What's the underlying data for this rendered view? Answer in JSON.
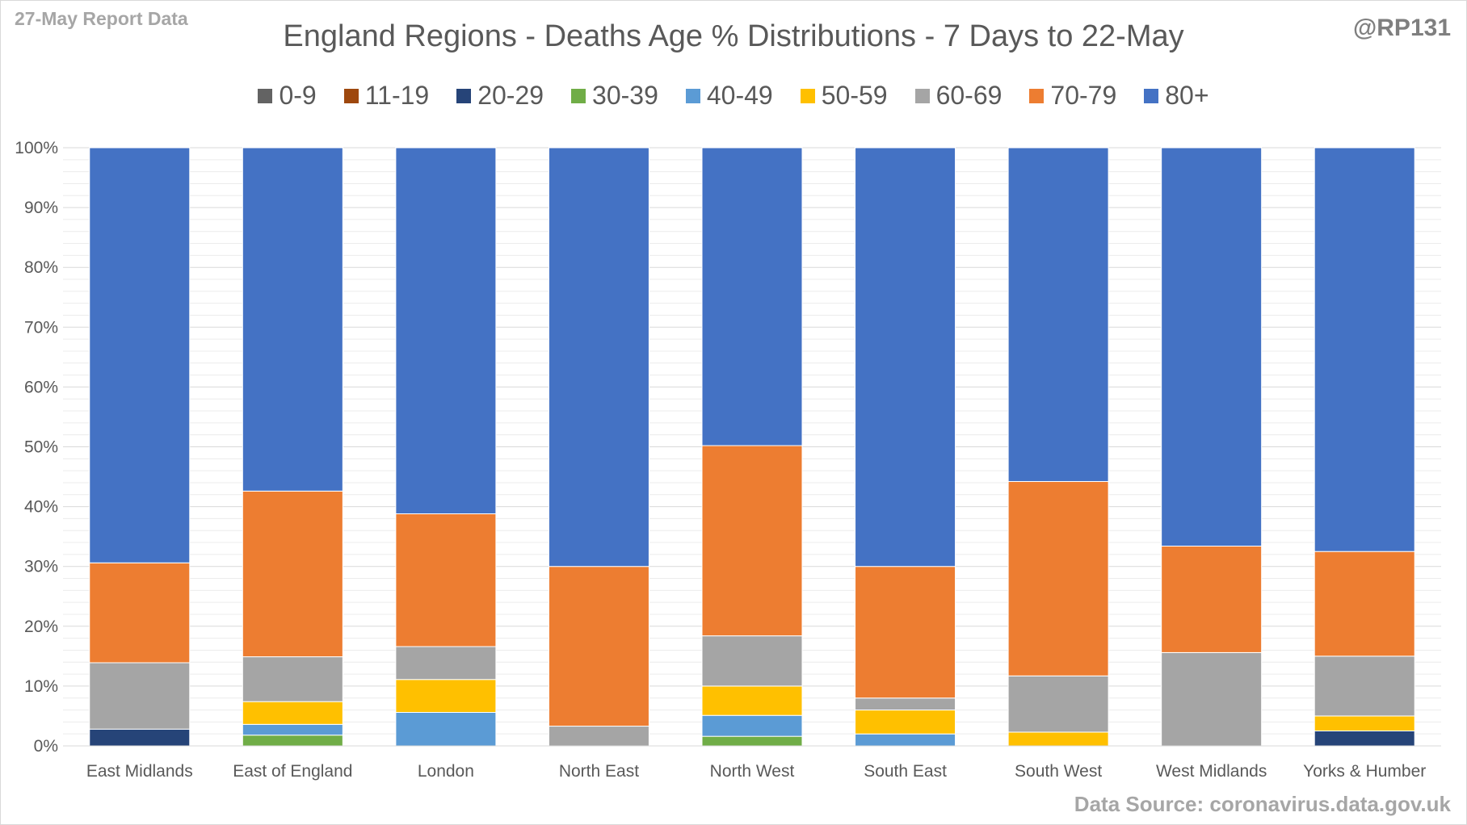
{
  "header": {
    "report_label": "27-May Report Data",
    "handle": "@RP131",
    "title": "England Regions - Deaths Age % Distributions - 7 Days to 22-May"
  },
  "footer": {
    "source": "Data Source: coronavirus.data.gov.uk"
  },
  "chart_data": {
    "type": "bar",
    "stacked": true,
    "percent": true,
    "title": "England Regions - Deaths Age % Distributions - 7 Days to 22-May",
    "xlabel": "",
    "ylabel": "",
    "ylim": [
      0,
      100
    ],
    "yticks": [
      "0%",
      "10%",
      "20%",
      "30%",
      "40%",
      "50%",
      "60%",
      "70%",
      "80%",
      "90%",
      "100%"
    ],
    "grid": true,
    "legend_position": "top",
    "categories": [
      "East Midlands",
      "East of England",
      "London",
      "North East",
      "North West",
      "South East",
      "South West",
      "West Midlands",
      "Yorks & Humber"
    ],
    "series": [
      {
        "name": "0-9",
        "color": "#636363",
        "values": [
          0,
          0,
          0,
          0,
          0,
          0,
          0,
          0,
          0
        ]
      },
      {
        "name": "11-19",
        "color": "#9e480e",
        "values": [
          0,
          0,
          0,
          0,
          0,
          0,
          0,
          0,
          0
        ]
      },
      {
        "name": "20-29",
        "color": "#264478",
        "values": [
          2.8,
          0,
          0,
          0,
          0,
          0,
          0,
          0,
          2.5
        ]
      },
      {
        "name": "30-39",
        "color": "#70ad47",
        "values": [
          0,
          1.8,
          0,
          0,
          1.6,
          0,
          0,
          0,
          0
        ]
      },
      {
        "name": "40-49",
        "color": "#5b9bd5",
        "values": [
          0,
          1.8,
          5.6,
          0,
          3.5,
          2.0,
          0,
          0,
          0
        ]
      },
      {
        "name": "50-59",
        "color": "#ffc000",
        "values": [
          0,
          3.8,
          5.5,
          0,
          4.9,
          4.0,
          2.3,
          0,
          2.5
        ]
      },
      {
        "name": "60-69",
        "color": "#a5a5a5",
        "values": [
          11.1,
          7.5,
          5.5,
          3.3,
          8.4,
          2.0,
          9.4,
          15.6,
          10.0
        ]
      },
      {
        "name": "70-79",
        "color": "#ed7d31",
        "values": [
          16.7,
          27.7,
          22.2,
          26.7,
          31.8,
          22.0,
          32.5,
          17.8,
          17.5
        ]
      },
      {
        "name": "80+",
        "color": "#4472c4",
        "values": [
          69.4,
          57.4,
          61.2,
          70.0,
          49.8,
          70.0,
          55.8,
          66.6,
          67.5
        ]
      }
    ]
  }
}
